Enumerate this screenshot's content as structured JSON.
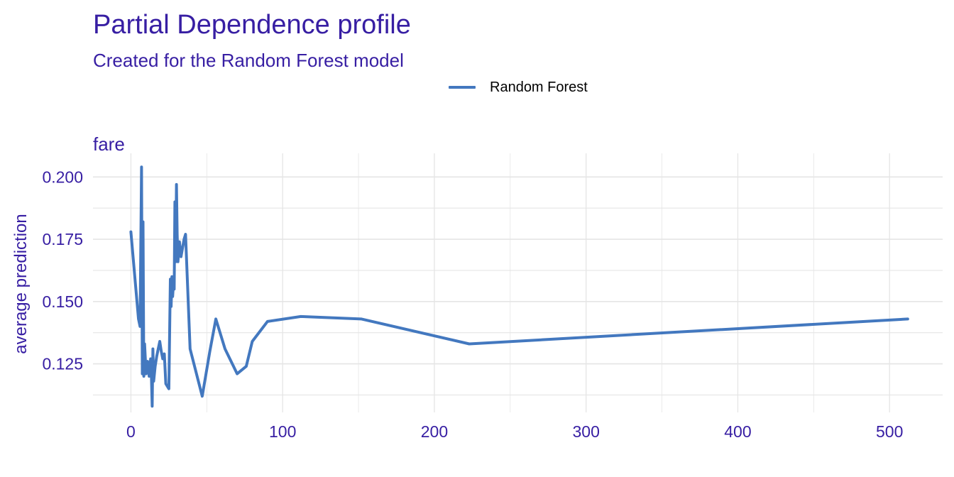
{
  "chart_data": {
    "type": "line",
    "title": "Partial Dependence profile",
    "subtitle": "Created for the Random Forest model",
    "panel_label": "fare",
    "ylabel": "average prediction",
    "xlabel": "",
    "legend": {
      "position": "top",
      "entries": [
        "Random Forest"
      ]
    },
    "colors": {
      "text": "#371EA3",
      "series": "#4378bf",
      "grid": "#e5e5e5"
    },
    "grid": true,
    "xlim": [
      -25,
      535
    ],
    "ylim": [
      0.1055,
      0.2095
    ],
    "x_ticks": [
      0,
      100,
      200,
      300,
      400,
      500
    ],
    "x_tick_labels": [
      "0",
      "100",
      "200",
      "300",
      "400",
      "500"
    ],
    "y_ticks": [
      0.125,
      0.15,
      0.175,
      0.2
    ],
    "y_tick_labels": [
      "0.125",
      "0.150",
      "0.175",
      "0.200"
    ],
    "series": [
      {
        "name": "Random Forest",
        "x": [
          0,
          5,
          6,
          7,
          7.5,
          8,
          8.5,
          9,
          10,
          11,
          12,
          13,
          13.5,
          14,
          14.5,
          15,
          16,
          17,
          18,
          19,
          20,
          21,
          22,
          23,
          24,
          25,
          26,
          26.5,
          27,
          27.5,
          28,
          28.5,
          29,
          29.5,
          30,
          30.5,
          31,
          32,
          33,
          35,
          36,
          39,
          47,
          52,
          56,
          62,
          70,
          76,
          80,
          90,
          112,
          152,
          223,
          512
        ],
        "y": [
          0.178,
          0.143,
          0.14,
          0.204,
          0.121,
          0.182,
          0.12,
          0.133,
          0.121,
          0.126,
          0.12,
          0.127,
          0.12,
          0.108,
          0.131,
          0.118,
          0.124,
          0.128,
          0.131,
          0.134,
          0.13,
          0.127,
          0.129,
          0.117,
          0.116,
          0.115,
          0.159,
          0.148,
          0.16,
          0.152,
          0.157,
          0.155,
          0.19,
          0.166,
          0.197,
          0.177,
          0.166,
          0.174,
          0.168,
          0.175,
          0.177,
          0.131,
          0.112,
          0.13,
          0.143,
          0.131,
          0.121,
          0.124,
          0.134,
          0.142,
          0.144,
          0.143,
          0.133,
          0.143
        ]
      }
    ]
  }
}
